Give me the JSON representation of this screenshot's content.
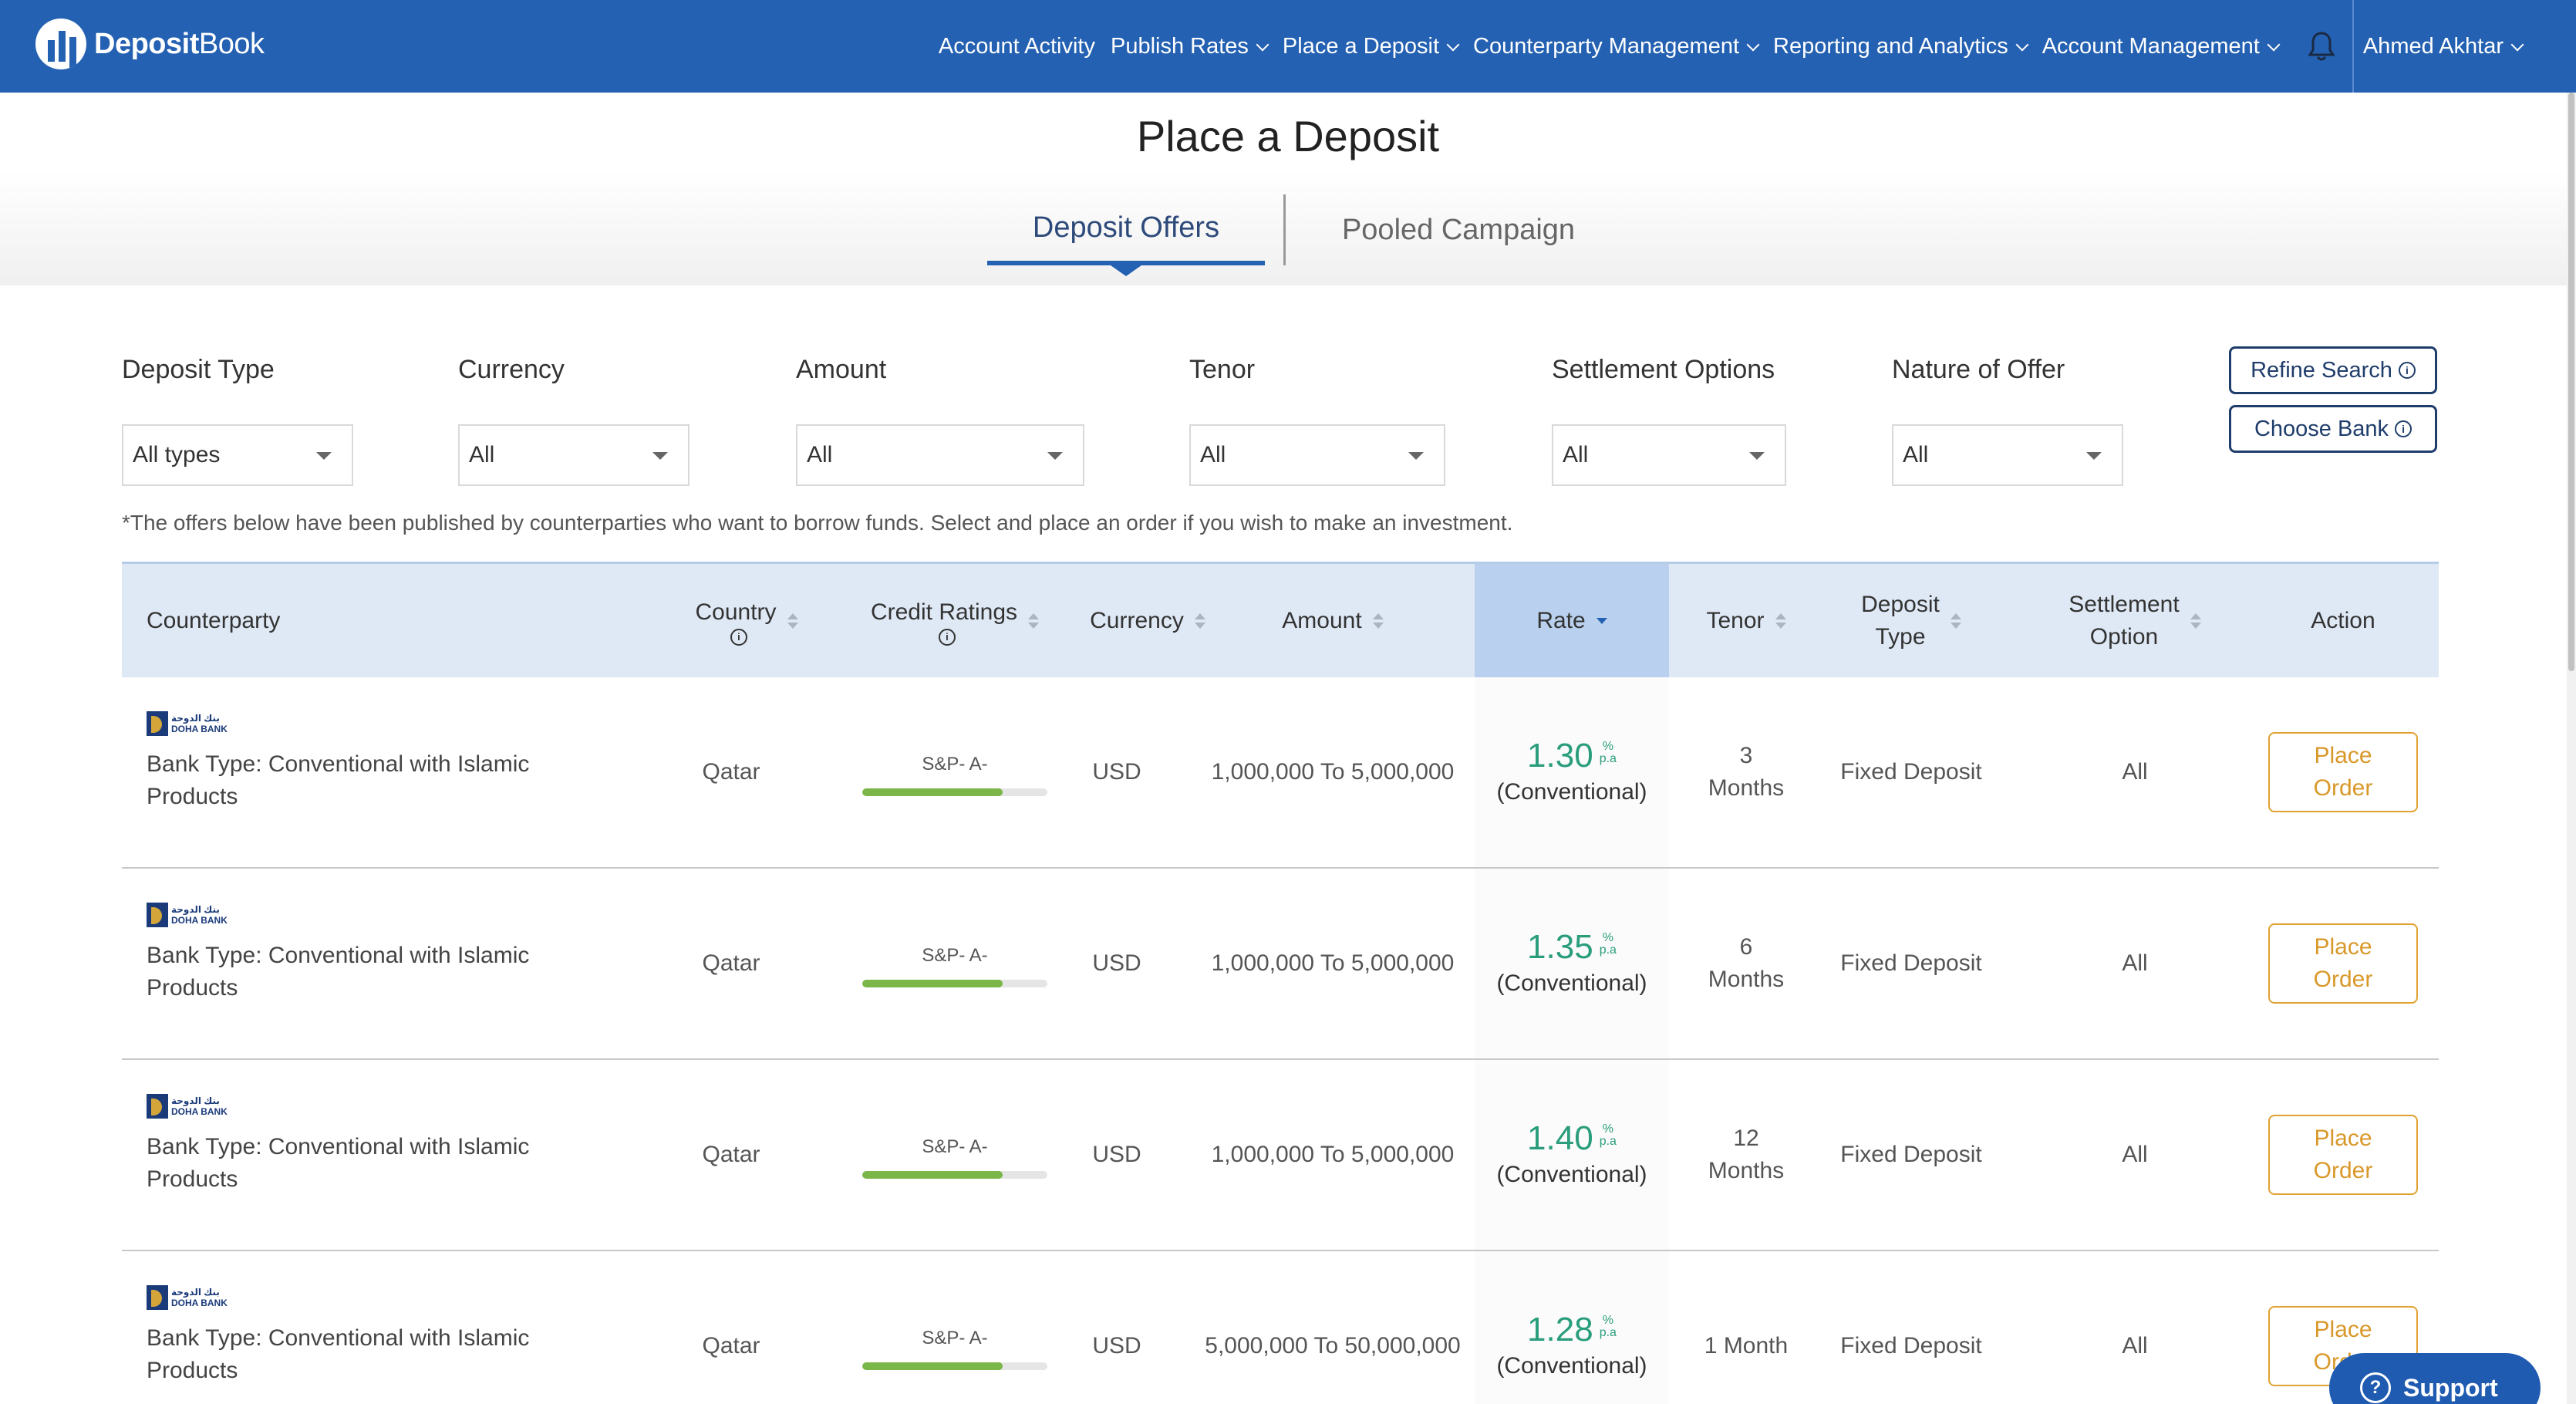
{
  "brand": {
    "bold": "Deposit",
    "light": "Book"
  },
  "nav": {
    "items": [
      {
        "label": "Account Activity",
        "dropdown": false
      },
      {
        "label": "Publish Rates",
        "dropdown": true
      },
      {
        "label": "Place a Deposit",
        "dropdown": true
      },
      {
        "label": "Counterparty Management",
        "dropdown": true
      },
      {
        "label": "Reporting and Analytics",
        "dropdown": true
      },
      {
        "label": "Account Management",
        "dropdown": true
      }
    ],
    "user": "Ahmed Akhtar"
  },
  "page": {
    "title": "Place a Deposit"
  },
  "tabs": [
    {
      "label": "Deposit Offers",
      "active": true
    },
    {
      "label": "Pooled Campaign",
      "active": false
    }
  ],
  "filters": {
    "deposit_type": {
      "label": "Deposit Type",
      "value": "All types"
    },
    "currency": {
      "label": "Currency",
      "value": "All"
    },
    "amount": {
      "label": "Amount",
      "value": "All"
    },
    "tenor": {
      "label": "Tenor",
      "value": "All"
    },
    "settlement": {
      "label": "Settlement Options",
      "value": "All"
    },
    "nature": {
      "label": "Nature of Offer",
      "value": "All"
    }
  },
  "buttons": {
    "refine": "Refine Search",
    "choose_bank": "Choose Bank"
  },
  "note": "*The offers below have been published by counterparties who want to borrow funds. Select and place an order if you wish to make an investment.",
  "table": {
    "headers": {
      "counterparty": "Counterparty",
      "country": "Country",
      "credit": "Credit Ratings",
      "currency": "Currency",
      "amount": "Amount",
      "rate": "Rate",
      "tenor": "Tenor",
      "deposit_type_1": "Deposit",
      "deposit_type_2": "Type",
      "settlement_1": "Settlement",
      "settlement_2": "Option",
      "action": "Action"
    },
    "rows": [
      {
        "bank_line1": "بنك الدوحة",
        "bank_line2": "DOHA BANK",
        "bank_type_1": "Bank Type: Conventional with Islamic",
        "bank_type_2": "Products",
        "country": "Qatar",
        "rating": "S&P- A-",
        "rating_level": 0.76,
        "currency": "USD",
        "amount": "1,000,000 To 5,000,000",
        "rate": "1.30",
        "rate_unit_top": "%",
        "rate_unit_bottom": "p.a",
        "rate_kind": "(Conventional)",
        "tenor_1": "3",
        "tenor_2": "Months",
        "deposit_type": "Fixed Deposit",
        "settlement": "All",
        "action_1": "Place",
        "action_2": "Order"
      },
      {
        "bank_line1": "بنك الدوحة",
        "bank_line2": "DOHA BANK",
        "bank_type_1": "Bank Type: Conventional with Islamic",
        "bank_type_2": "Products",
        "country": "Qatar",
        "rating": "S&P- A-",
        "rating_level": 0.76,
        "currency": "USD",
        "amount": "1,000,000 To 5,000,000",
        "rate": "1.35",
        "rate_unit_top": "%",
        "rate_unit_bottom": "p.a",
        "rate_kind": "(Conventional)",
        "tenor_1": "6",
        "tenor_2": "Months",
        "deposit_type": "Fixed Deposit",
        "settlement": "All",
        "action_1": "Place",
        "action_2": "Order"
      },
      {
        "bank_line1": "بنك الدوحة",
        "bank_line2": "DOHA BANK",
        "bank_type_1": "Bank Type: Conventional with Islamic",
        "bank_type_2": "Products",
        "country": "Qatar",
        "rating": "S&P- A-",
        "rating_level": 0.76,
        "currency": "USD",
        "amount": "1,000,000 To 5,000,000",
        "rate": "1.40",
        "rate_unit_top": "%",
        "rate_unit_bottom": "p.a",
        "rate_kind": "(Conventional)",
        "tenor_1": "12",
        "tenor_2": "Months",
        "deposit_type": "Fixed Deposit",
        "settlement": "All",
        "action_1": "Place",
        "action_2": "Order"
      },
      {
        "bank_line1": "بنك الدوحة",
        "bank_line2": "DOHA BANK",
        "bank_type_1": "Bank Type: Conventional with Islamic",
        "bank_type_2": "Products",
        "country": "Qatar",
        "rating": "S&P- A-",
        "rating_level": 0.76,
        "currency": "USD",
        "amount": "5,000,000 To 50,000,000",
        "rate": "1.28",
        "rate_unit_top": "%",
        "rate_unit_bottom": "p.a",
        "rate_kind": "(Conventional)",
        "tenor_1": "1 Month",
        "tenor_2": "",
        "deposit_type": "Fixed Deposit",
        "settlement": "All",
        "action_1": "Place",
        "action_2": "Order"
      }
    ]
  },
  "support": {
    "label": "Support"
  },
  "colors": {
    "primary": "#2461b2",
    "rate_green": "#2a9d7c",
    "accent_orange": "#e0a231",
    "rating_green": "#7ab648"
  },
  "icons": {
    "bell": "bell-icon",
    "info": "info-icon",
    "help": "question-icon",
    "chevron": "chevron-down-icon"
  }
}
